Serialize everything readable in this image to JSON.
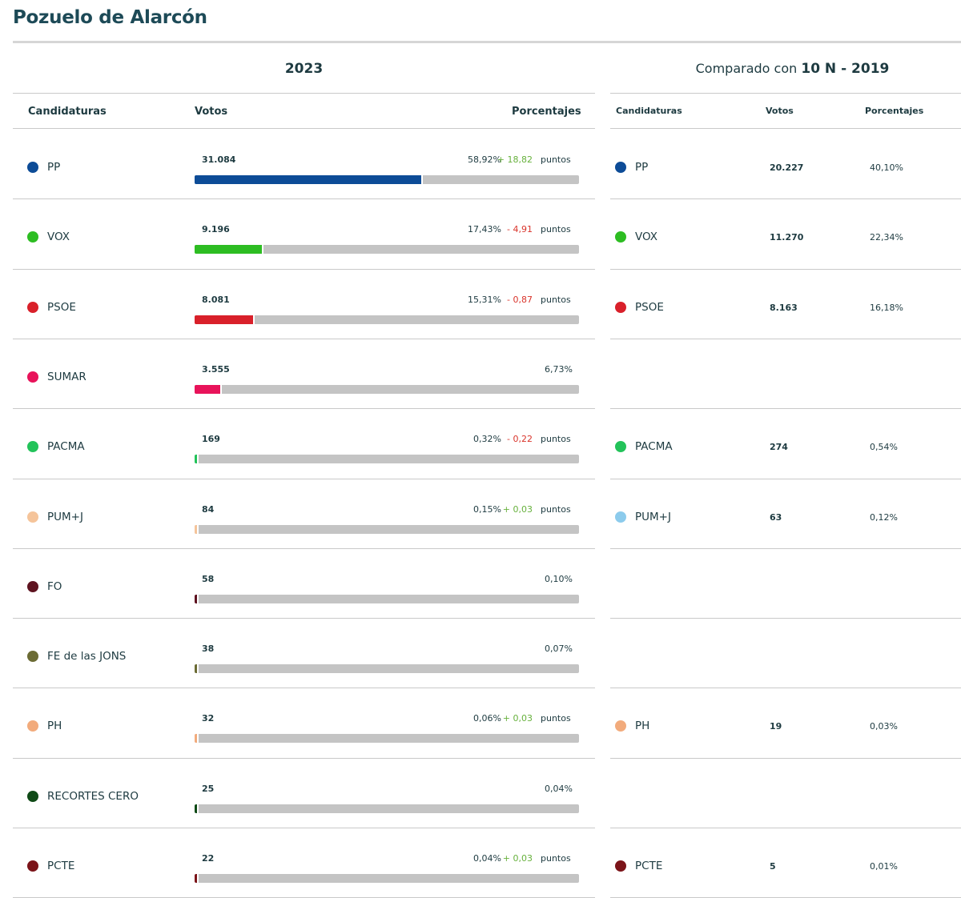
{
  "title": "Pozuelo de Alarcón",
  "year_label": "2023",
  "compare": {
    "prefix": "Comparado con",
    "election": "10 N - 2019"
  },
  "headers": {
    "candidaturas": "Candidaturas",
    "votos": "Votos",
    "porcentajes": "Porcentajes"
  },
  "puntos_label": "puntos",
  "chart_data": {
    "type": "bar",
    "categories": [
      "PP",
      "VOX",
      "PSOE",
      "SUMAR",
      "PACMA",
      "PUM+J",
      "FO",
      "FE de las JONS",
      "PH",
      "RECORTES CERO",
      "PCTE"
    ],
    "series": [
      {
        "name": "2023",
        "votes": [
          31084,
          9196,
          8081,
          3555,
          169,
          84,
          58,
          38,
          32,
          25,
          22
        ],
        "values": [
          58.92,
          17.43,
          15.31,
          6.73,
          0.32,
          0.15,
          0.1,
          0.07,
          0.06,
          0.04,
          0.04
        ]
      },
      {
        "name": "10 N - 2019",
        "votes": [
          20227,
          11270,
          8163,
          null,
          274,
          63,
          null,
          null,
          19,
          null,
          5
        ],
        "values": [
          40.1,
          22.34,
          16.18,
          null,
          0.54,
          0.12,
          null,
          null,
          0.03,
          null,
          0.01
        ]
      }
    ],
    "ylim": [
      0,
      100
    ]
  },
  "rows": [
    {
      "name": "PP",
      "color": "#0d4c97",
      "votes": "31.084",
      "pct": "58,92%",
      "pct_value": 58.92,
      "diff": "+ 18,82",
      "diff_color": "#67b13d",
      "show_puntos": true,
      "prev_color": "#0d4c97",
      "prev_votes": "20.227",
      "prev_pct": "40,10%"
    },
    {
      "name": "VOX",
      "color": "#2dbd22",
      "votes": "9.196",
      "pct": "17,43%",
      "pct_value": 17.43,
      "diff": "- 4,91",
      "diff_color": "#d9342b",
      "show_puntos": true,
      "prev_color": "#2dbd22",
      "prev_votes": "11.270",
      "prev_pct": "22,34%"
    },
    {
      "name": "PSOE",
      "color": "#d9202a",
      "votes": "8.081",
      "pct": "15,31%",
      "pct_value": 15.31,
      "diff": "- 0,87",
      "diff_color": "#d9342b",
      "show_puntos": true,
      "prev_color": "#d9202a",
      "prev_votes": "8.163",
      "prev_pct": "16,18%"
    },
    {
      "name": "SUMAR",
      "color": "#e8135a",
      "votes": "3.555",
      "pct": "6,73%",
      "pct_value": 6.73,
      "diff": "",
      "diff_color": "",
      "show_puntos": false,
      "prev_color": "",
      "prev_votes": "",
      "prev_pct": ""
    },
    {
      "name": "PACMA",
      "color": "#23c35a",
      "votes": "169",
      "pct": "0,32%",
      "pct_value": 0.32,
      "diff": "- 0,22",
      "diff_color": "#d9342b",
      "show_puntos": true,
      "prev_color": "#23c35a",
      "prev_votes": "274",
      "prev_pct": "0,54%"
    },
    {
      "name": "PUM+J",
      "color": "#f5c49a",
      "votes": "84",
      "pct": "0,15%",
      "pct_value": 0.15,
      "diff": "+ 0,03",
      "diff_color": "#67b13d",
      "show_puntos": true,
      "prev_color": "#8ccbec",
      "prev_votes": "63",
      "prev_pct": "0,12%"
    },
    {
      "name": "FO",
      "color": "#5e1320",
      "votes": "58",
      "pct": "0,10%",
      "pct_value": 0.1,
      "diff": "",
      "diff_color": "",
      "show_puntos": false,
      "prev_color": "",
      "prev_votes": "",
      "prev_pct": ""
    },
    {
      "name": "FE de las JONS",
      "color": "#6b6b34",
      "votes": "38",
      "pct": "0,07%",
      "pct_value": 0.07,
      "diff": "",
      "diff_color": "",
      "show_puntos": false,
      "prev_color": "",
      "prev_votes": "",
      "prev_pct": ""
    },
    {
      "name": "PH",
      "color": "#f2ab7c",
      "votes": "32",
      "pct": "0,06%",
      "pct_value": 0.06,
      "diff": "+ 0,03",
      "diff_color": "#67b13d",
      "show_puntos": true,
      "prev_color": "#f2ab7c",
      "prev_votes": "19",
      "prev_pct": "0,03%"
    },
    {
      "name": "RECORTES CERO",
      "color": "#0f4a16",
      "votes": "25",
      "pct": "0,04%",
      "pct_value": 0.04,
      "diff": "",
      "diff_color": "",
      "show_puntos": false,
      "prev_color": "",
      "prev_votes": "",
      "prev_pct": ""
    },
    {
      "name": "PCTE",
      "color": "#7b1419",
      "votes": "22",
      "pct": "0,04%",
      "pct_value": 0.04,
      "diff": "+ 0,03",
      "diff_color": "#67b13d",
      "show_puntos": true,
      "prev_color": "#7b1419",
      "prev_votes": "5",
      "prev_pct": "0,01%"
    }
  ]
}
